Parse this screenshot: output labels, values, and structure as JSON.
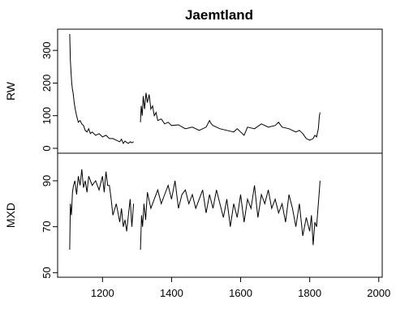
{
  "chart_data": {
    "type": "line",
    "title": "Jaemtland",
    "xlim": [
      1070,
      2010
    ],
    "x_ticks": [
      1200,
      1400,
      1600,
      1800,
      2000
    ],
    "x_tick_labels": [
      "1200",
      "1400",
      "1600",
      "1800",
      "2000"
    ],
    "line_color": "#000000",
    "panels": [
      {
        "ylabel": "RW",
        "ylim": [
          -15,
          365
        ],
        "y_ticks": [
          0,
          100,
          200,
          300
        ],
        "y_tick_labels": [
          "0",
          "100",
          "200",
          "300"
        ],
        "series": [
          {
            "x": [
              1105,
              1107,
              1109,
              1111,
              1113,
              1115,
              1118,
              1121,
              1125,
              1130,
              1135,
              1140,
              1145,
              1150,
              1155,
              1160,
              1165,
              1170,
              1180,
              1190,
              1200,
              1210,
              1220,
              1230,
              1240,
              1250,
              1255,
              1260,
              1265,
              1270,
              1275,
              1280,
              1285,
              1290
            ],
            "y": [
              350,
              270,
              230,
              200,
              180,
              170,
              140,
              120,
              100,
              80,
              85,
              75,
              70,
              55,
              50,
              60,
              45,
              50,
              40,
              45,
              35,
              40,
              30,
              30,
              25,
              20,
              28,
              15,
              22,
              18,
              15,
              20,
              17,
              20
            ]
          },
          {
            "x": [
              1310,
              1312,
              1315,
              1318,
              1322,
              1326,
              1330,
              1335,
              1340,
              1345,
              1350,
              1355,
              1360,
              1370,
              1380,
              1390,
              1400,
              1420,
              1440,
              1460,
              1480,
              1500,
              1510,
              1515,
              1520,
              1540,
              1560,
              1580,
              1590,
              1600,
              1610,
              1620,
              1640,
              1660,
              1680,
              1700,
              1710,
              1720,
              1740,
              1760,
              1770,
              1780,
              1790,
              1800,
              1810,
              1815,
              1820,
              1825,
              1828,
              1830
            ],
            "y": [
              80,
              130,
              100,
              160,
              120,
              170,
              140,
              165,
              120,
              130,
              100,
              110,
              85,
              90,
              75,
              80,
              70,
              72,
              60,
              65,
              55,
              65,
              85,
              75,
              70,
              60,
              55,
              50,
              60,
              50,
              40,
              65,
              60,
              75,
              65,
              70,
              80,
              65,
              60,
              50,
              55,
              45,
              30,
              25,
              30,
              40,
              35,
              60,
              100,
              110
            ]
          }
        ]
      },
      {
        "ylabel": "MXD",
        "ylim": [
          48,
          102
        ],
        "y_ticks": [
          50,
          70,
          90
        ],
        "y_tick_labels": [
          "50",
          "70",
          "90"
        ],
        "series": [
          {
            "x": [
              1105,
              1107,
              1110,
              1113,
              1116,
              1120,
              1125,
              1130,
              1135,
              1140,
              1145,
              1150,
              1155,
              1160,
              1170,
              1180,
              1190,
              1200,
              1205,
              1210,
              1215,
              1220,
              1225,
              1230,
              1240,
              1250,
              1255,
              1260,
              1265,
              1270,
              1275,
              1280,
              1285,
              1290
            ],
            "y": [
              60,
              80,
              75,
              85,
              88,
              90,
              84,
              92,
              88,
              95,
              87,
              90,
              85,
              92,
              88,
              90,
              86,
              92,
              85,
              94,
              88,
              88,
              82,
              75,
              80,
              72,
              78,
              70,
              73,
              68,
              75,
              82,
              70,
              80
            ]
          },
          {
            "x": [
              1310,
              1313,
              1316,
              1320,
              1325,
              1330,
              1340,
              1350,
              1360,
              1370,
              1380,
              1390,
              1400,
              1410,
              1420,
              1430,
              1440,
              1450,
              1460,
              1470,
              1480,
              1490,
              1500,
              1510,
              1520,
              1530,
              1540,
              1550,
              1560,
              1570,
              1580,
              1590,
              1600,
              1610,
              1620,
              1630,
              1640,
              1650,
              1660,
              1670,
              1680,
              1690,
              1700,
              1710,
              1720,
              1730,
              1740,
              1750,
              1760,
              1770,
              1780,
              1790,
              1800,
              1805,
              1810,
              1815,
              1820,
              1825,
              1828,
              1830
            ],
            "y": [
              60,
              75,
              70,
              80,
              73,
              85,
              78,
              82,
              86,
              80,
              84,
              88,
              82,
              90,
              78,
              84,
              86,
              80,
              84,
              78,
              82,
              86,
              76,
              84,
              78,
              86,
              80,
              74,
              82,
              70,
              80,
              74,
              84,
              72,
              82,
              78,
              88,
              74,
              84,
              80,
              86,
              78,
              82,
              76,
              80,
              72,
              84,
              78,
              70,
              80,
              66,
              74,
              68,
              75,
              62,
              72,
              70,
              80,
              86,
              90
            ]
          }
        ]
      }
    ]
  }
}
